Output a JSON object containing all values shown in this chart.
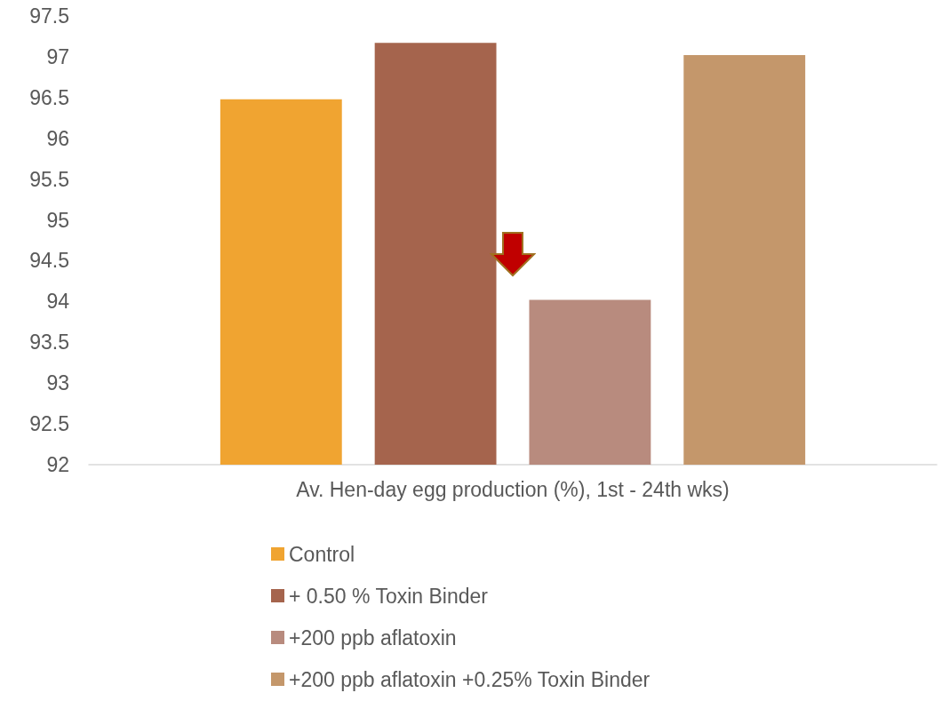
{
  "chart_data": {
    "type": "bar",
    "categories": [
      "Av. Hen-day egg production (%), 1st - 24th wks)"
    ],
    "series": [
      {
        "name": "Control",
        "color": "#f0a431",
        "values": [
          96.48
        ]
      },
      {
        "name": "+ 0.50 % Toxin Binder",
        "color": "#a5644d",
        "values": [
          97.17
        ]
      },
      {
        "name": "+200 ppb aflatoxin",
        "color": "#b88b7e",
        "values": [
          94.02
        ]
      },
      {
        "name": "+200 ppb aflatoxin +0.25% Toxin Binder",
        "color": "#c4976b",
        "values": [
          97.02
        ]
      }
    ],
    "ylim": [
      92,
      97.5
    ],
    "yticks": [
      92,
      92.5,
      93,
      93.5,
      94,
      94.5,
      95,
      95.5,
      96,
      96.5,
      97,
      97.5
    ],
    "grid": false,
    "legend": "bottom"
  }
}
